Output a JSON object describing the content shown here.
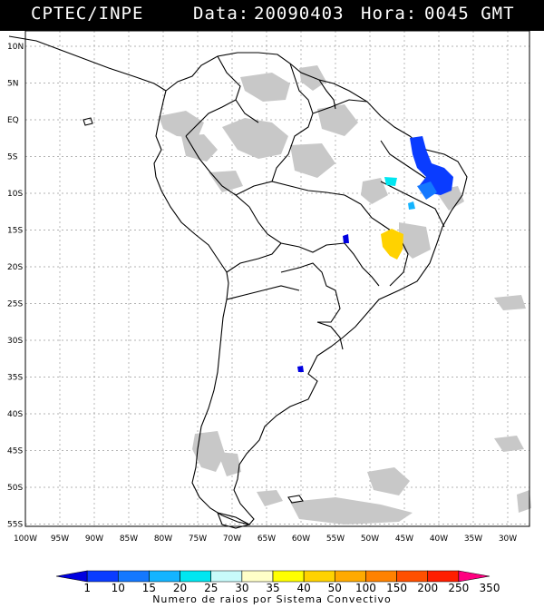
{
  "header": {
    "source": "CPTEC/INPE",
    "date_label": "Data:",
    "date": "20090403",
    "time_label": "Hora:",
    "time": "0045 GMT"
  },
  "map": {
    "lat_labels": [
      {
        "deg": 10,
        "label": "10N"
      },
      {
        "deg": 5,
        "label": "5N"
      },
      {
        "deg": 0,
        "label": "EQ"
      },
      {
        "deg": -5,
        "label": "5S"
      },
      {
        "deg": -10,
        "label": "10S"
      },
      {
        "deg": -15,
        "label": "15S"
      },
      {
        "deg": -20,
        "label": "20S"
      },
      {
        "deg": -25,
        "label": "25S"
      },
      {
        "deg": -30,
        "label": "30S"
      },
      {
        "deg": -35,
        "label": "35S"
      },
      {
        "deg": -40,
        "label": "40S"
      },
      {
        "deg": -45,
        "label": "45S"
      },
      {
        "deg": -50,
        "label": "50S"
      },
      {
        "deg": -55,
        "label": "55S"
      }
    ],
    "lon_labels": [
      {
        "deg": -100,
        "label": "100W"
      },
      {
        "deg": -95,
        "label": "95W"
      },
      {
        "deg": -90,
        "label": "90W"
      },
      {
        "deg": -85,
        "label": "85W"
      },
      {
        "deg": -80,
        "label": "80W"
      },
      {
        "deg": -75,
        "label": "75W"
      },
      {
        "deg": -70,
        "label": "70W"
      },
      {
        "deg": -65,
        "label": "65W"
      },
      {
        "deg": -60,
        "label": "60W"
      },
      {
        "deg": -55,
        "label": "55W"
      },
      {
        "deg": -50,
        "label": "50W"
      },
      {
        "deg": -45,
        "label": "45W"
      },
      {
        "deg": -40,
        "label": "40W"
      },
      {
        "deg": -35,
        "label": "35W"
      },
      {
        "deg": -30,
        "label": "30W"
      }
    ],
    "colors": {
      "land_outline": "#000000",
      "cloud": "#c8c8c8",
      "grid": "#9a9a9a"
    }
  },
  "legend": {
    "values": [
      "1",
      "10",
      "15",
      "20",
      "25",
      "30",
      "35",
      "40",
      "50",
      "100",
      "150",
      "200",
      "250",
      "350"
    ],
    "colors": [
      "#0000e0",
      "#0a3cff",
      "#1478ff",
      "#14b4ff",
      "#00e6f0",
      "#c8fafa",
      "#ffffc8",
      "#ffff00",
      "#ffd200",
      "#ffaa00",
      "#ff8200",
      "#ff5000",
      "#ff1e00",
      "#ff0080"
    ],
    "caption": "Numero de raios por Sistema Convectivo"
  }
}
